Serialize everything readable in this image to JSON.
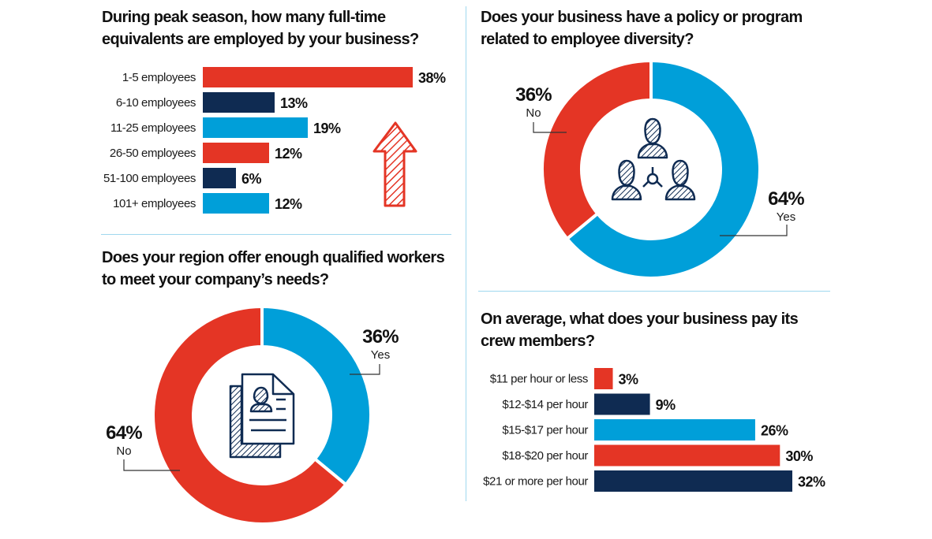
{
  "colors": {
    "red": "#e43525",
    "navy": "#0f2b52",
    "blue": "#009fd9",
    "divider": "#9fd8ee",
    "leader": "#333333"
  },
  "chart_data": [
    {
      "id": "fte",
      "type": "bar",
      "orientation": "horizontal",
      "title": "During peak season, how many full-time equivalents are employed by your business?",
      "title_lines": [
        "During peak season, how many full-time",
        "equivalents are employed by your business?"
      ],
      "categories": [
        "1-5 employees",
        "6-10 employees",
        "11-25 employees",
        "26-50 employees",
        "51-100 employees",
        "101+ employees"
      ],
      "values": [
        38,
        13,
        19,
        12,
        6,
        12
      ],
      "value_labels": [
        "38%",
        "13%",
        "19%",
        "12%",
        "6%",
        "12%"
      ],
      "bar_colors": [
        "red",
        "navy",
        "blue",
        "red",
        "navy",
        "blue"
      ],
      "unit": "%",
      "xlim": [
        0,
        38
      ],
      "decoration": "up-arrow-icon"
    },
    {
      "id": "diversity",
      "type": "pie",
      "donut": true,
      "title": "Does your business have a policy or program related to employee diversity?",
      "title_lines": [
        "Does your business have a policy or program",
        "related to employee diversity?"
      ],
      "slices": [
        {
          "label": "Yes",
          "value": 64,
          "pct_label": "64%",
          "color": "blue"
        },
        {
          "label": "No",
          "value": 36,
          "pct_label": "36%",
          "color": "red"
        }
      ],
      "start": "top",
      "direction": "clockwise",
      "center_icon": "people-network-icon"
    },
    {
      "id": "workers",
      "type": "pie",
      "donut": true,
      "title": "Does your region offer enough qualified workers to meet your company's needs?",
      "title_lines": [
        "Does your region offer enough qualified workers",
        "to meet your company’s needs?"
      ],
      "slices": [
        {
          "label": "Yes",
          "value": 36,
          "pct_label": "36%",
          "color": "blue"
        },
        {
          "label": "No",
          "value": 64,
          "pct_label": "64%",
          "color": "red"
        }
      ],
      "start": "top",
      "direction": "clockwise",
      "center_icon": "resume-document-icon"
    },
    {
      "id": "pay",
      "type": "bar",
      "orientation": "horizontal",
      "title": "On average, what does your business pay its crew members?",
      "title_lines": [
        "On average, what does your business pay its",
        "crew members?"
      ],
      "categories": [
        "$11 per hour or less",
        "$12-$14 per hour",
        "$15-$17 per hour",
        "$18-$20 per hour",
        "$21 or more per hour"
      ],
      "values": [
        3,
        9,
        26,
        30,
        32
      ],
      "value_labels": [
        "3%",
        "9%",
        "26%",
        "30%",
        "32%"
      ],
      "bar_colors": [
        "red",
        "navy",
        "blue",
        "red",
        "navy"
      ],
      "unit": "%",
      "xlim": [
        0,
        32
      ]
    }
  ]
}
